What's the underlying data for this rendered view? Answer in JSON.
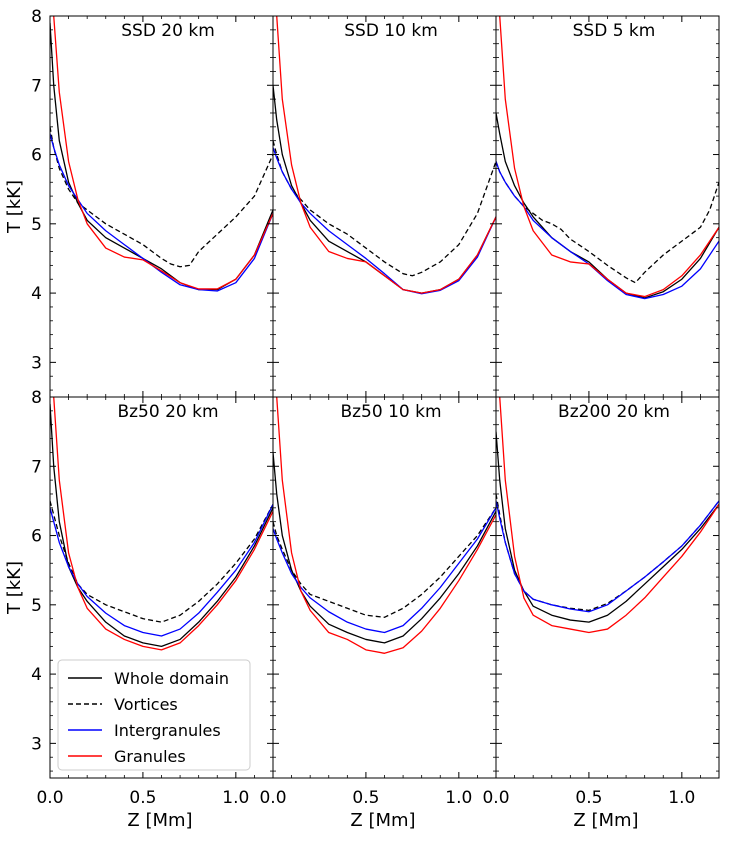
{
  "chart_data": {
    "type": "line",
    "layout": "2x3 grid, shared axes",
    "xlabel": "Z [Mm]",
    "ylabel": "T [kK]",
    "xlim": [
      0.0,
      1.2
    ],
    "ylim": [
      2.5,
      8.0
    ],
    "xticks": [
      0.0,
      0.5,
      1.0
    ],
    "xtick_labels": [
      "0.0",
      "0.5",
      "1.0"
    ],
    "yticks": [
      3,
      4,
      5,
      6,
      7,
      8
    ],
    "ytick_labels": [
      "3",
      "4",
      "5",
      "6",
      "7",
      "8"
    ],
    "grid": false,
    "legend": {
      "placement": "lower-left of bottom-left panel",
      "entries": [
        {
          "label": "Whole domain",
          "color": "#000000",
          "style": "solid"
        },
        {
          "label": "Vortices",
          "color": "#000000",
          "style": "dashed"
        },
        {
          "label": "Intergranules",
          "color": "#0000ff",
          "style": "solid"
        },
        {
          "label": "Granules",
          "color": "#ff0000",
          "style": "solid"
        }
      ]
    },
    "series_colors": {
      "whole": "#000000",
      "vortices": "#000000",
      "intergranules": "#0000ff",
      "granules": "#ff0000"
    },
    "panels": [
      {
        "title": "SSD 20 km",
        "whole": {
          "x": [
            0,
            0.02,
            0.05,
            0.1,
            0.15,
            0.2,
            0.3,
            0.4,
            0.5,
            0.6,
            0.7,
            0.8,
            0.9,
            1.0,
            1.1,
            1.2
          ],
          "y": [
            7.9,
            7.0,
            6.2,
            5.6,
            5.3,
            5.05,
            4.8,
            4.65,
            4.5,
            4.35,
            4.15,
            4.05,
            4.05,
            4.2,
            4.55,
            5.2
          ]
        },
        "vortices": {
          "x": [
            0,
            0.02,
            0.05,
            0.1,
            0.15,
            0.2,
            0.3,
            0.4,
            0.5,
            0.6,
            0.65,
            0.7,
            0.75,
            0.8,
            0.9,
            1.0,
            1.1,
            1.2
          ],
          "y": [
            6.4,
            6.1,
            5.8,
            5.5,
            5.3,
            5.2,
            5.0,
            4.85,
            4.7,
            4.5,
            4.42,
            4.38,
            4.4,
            4.6,
            4.85,
            5.1,
            5.4,
            6.0
          ]
        },
        "intergranules": {
          "x": [
            0,
            0.02,
            0.05,
            0.1,
            0.15,
            0.2,
            0.3,
            0.4,
            0.5,
            0.6,
            0.7,
            0.8,
            0.9,
            1.0,
            1.1,
            1.2
          ],
          "y": [
            6.3,
            6.1,
            5.85,
            5.55,
            5.35,
            5.15,
            4.9,
            4.7,
            4.5,
            4.3,
            4.12,
            4.05,
            4.03,
            4.15,
            4.5,
            5.15
          ]
        },
        "granules": {
          "x": [
            0,
            0.02,
            0.05,
            0.1,
            0.15,
            0.2,
            0.3,
            0.4,
            0.5,
            0.6,
            0.7,
            0.8,
            0.9,
            1.0,
            1.1,
            1.2
          ],
          "y": [
            9.5,
            8.0,
            6.9,
            5.9,
            5.35,
            5.0,
            4.65,
            4.52,
            4.48,
            4.32,
            4.15,
            4.06,
            4.06,
            4.2,
            4.55,
            5.15
          ]
        }
      },
      {
        "title": "SSD 10 km",
        "whole": {
          "x": [
            0,
            0.02,
            0.05,
            0.1,
            0.15,
            0.2,
            0.3,
            0.4,
            0.5,
            0.6,
            0.7,
            0.8,
            0.9,
            1.0,
            1.1,
            1.2
          ],
          "y": [
            7.0,
            6.5,
            6.0,
            5.55,
            5.3,
            5.05,
            4.75,
            4.6,
            4.45,
            4.25,
            4.05,
            4.0,
            4.05,
            4.2,
            4.55,
            5.1
          ]
        },
        "vortices": {
          "x": [
            0,
            0.02,
            0.05,
            0.1,
            0.15,
            0.2,
            0.3,
            0.4,
            0.5,
            0.6,
            0.7,
            0.75,
            0.8,
            0.9,
            1.0,
            1.1,
            1.2
          ],
          "y": [
            6.2,
            6.0,
            5.75,
            5.5,
            5.35,
            5.2,
            5.0,
            4.85,
            4.65,
            4.45,
            4.28,
            4.25,
            4.3,
            4.45,
            4.7,
            5.15,
            5.9
          ]
        },
        "intergranules": {
          "x": [
            0,
            0.02,
            0.05,
            0.1,
            0.15,
            0.2,
            0.3,
            0.4,
            0.5,
            0.6,
            0.7,
            0.8,
            0.9,
            1.0,
            1.1,
            1.2
          ],
          "y": [
            6.1,
            5.95,
            5.75,
            5.5,
            5.3,
            5.15,
            4.9,
            4.7,
            4.5,
            4.28,
            4.05,
            3.99,
            4.04,
            4.18,
            4.52,
            5.1
          ]
        },
        "granules": {
          "x": [
            0,
            0.02,
            0.05,
            0.1,
            0.15,
            0.2,
            0.3,
            0.4,
            0.5,
            0.6,
            0.7,
            0.8,
            0.9,
            1.0,
            1.1,
            1.2
          ],
          "y": [
            9.5,
            8.0,
            6.8,
            5.85,
            5.3,
            4.95,
            4.6,
            4.5,
            4.45,
            4.25,
            4.05,
            4.0,
            4.05,
            4.2,
            4.55,
            5.1
          ]
        }
      },
      {
        "title": "SSD 5 km",
        "whole": {
          "x": [
            0,
            0.02,
            0.05,
            0.1,
            0.15,
            0.2,
            0.3,
            0.4,
            0.5,
            0.6,
            0.7,
            0.8,
            0.9,
            1.0,
            1.1,
            1.2
          ],
          "y": [
            6.6,
            6.3,
            5.9,
            5.55,
            5.3,
            5.1,
            4.8,
            4.6,
            4.45,
            4.2,
            4.0,
            3.93,
            4.02,
            4.2,
            4.5,
            4.95
          ]
        },
        "vortices": {
          "x": [
            0,
            0.02,
            0.05,
            0.1,
            0.15,
            0.2,
            0.25,
            0.3,
            0.35,
            0.4,
            0.5,
            0.6,
            0.7,
            0.75,
            0.8,
            0.9,
            1.0,
            1.05,
            1.1,
            1.15,
            1.2
          ],
          "y": [
            5.9,
            5.75,
            5.6,
            5.4,
            5.25,
            5.15,
            5.05,
            5.0,
            4.92,
            4.78,
            4.6,
            4.4,
            4.22,
            4.15,
            4.3,
            4.55,
            4.75,
            4.85,
            4.95,
            5.2,
            5.6
          ]
        },
        "intergranules": {
          "x": [
            0,
            0.02,
            0.05,
            0.1,
            0.15,
            0.2,
            0.3,
            0.4,
            0.5,
            0.6,
            0.7,
            0.8,
            0.9,
            1.0,
            1.1,
            1.2
          ],
          "y": [
            5.9,
            5.75,
            5.6,
            5.4,
            5.25,
            5.05,
            4.8,
            4.6,
            4.42,
            4.18,
            3.98,
            3.92,
            3.98,
            4.1,
            4.35,
            4.75
          ]
        },
        "granules": {
          "x": [
            0,
            0.02,
            0.05,
            0.1,
            0.15,
            0.2,
            0.3,
            0.4,
            0.5,
            0.6,
            0.7,
            0.8,
            0.9,
            1.0,
            1.1,
            1.2
          ],
          "y": [
            9.5,
            8.0,
            6.8,
            5.8,
            5.25,
            4.9,
            4.55,
            4.45,
            4.42,
            4.2,
            4.0,
            3.95,
            4.05,
            4.25,
            4.55,
            4.95
          ]
        }
      },
      {
        "title": "Bz50 20 km",
        "whole": {
          "x": [
            0,
            0.02,
            0.05,
            0.1,
            0.15,
            0.2,
            0.3,
            0.4,
            0.5,
            0.6,
            0.7,
            0.8,
            0.9,
            1.0,
            1.1,
            1.2
          ],
          "y": [
            7.9,
            7.0,
            6.2,
            5.55,
            5.25,
            5.05,
            4.75,
            4.55,
            4.45,
            4.4,
            4.5,
            4.75,
            5.05,
            5.4,
            5.85,
            6.4
          ]
        },
        "vortices": {
          "x": [
            0,
            0.02,
            0.05,
            0.1,
            0.15,
            0.2,
            0.3,
            0.4,
            0.5,
            0.6,
            0.7,
            0.8,
            0.9,
            1.0,
            1.1,
            1.2
          ],
          "y": [
            6.5,
            6.3,
            6.0,
            5.6,
            5.3,
            5.15,
            5.0,
            4.9,
            4.8,
            4.75,
            4.85,
            5.05,
            5.3,
            5.6,
            5.95,
            6.45
          ]
        },
        "intergranules": {
          "x": [
            0,
            0.02,
            0.05,
            0.1,
            0.15,
            0.2,
            0.3,
            0.4,
            0.5,
            0.6,
            0.7,
            0.8,
            0.9,
            1.0,
            1.1,
            1.2
          ],
          "y": [
            6.4,
            6.2,
            5.9,
            5.55,
            5.3,
            5.12,
            4.88,
            4.7,
            4.6,
            4.55,
            4.65,
            4.88,
            5.18,
            5.5,
            5.9,
            6.45
          ]
        },
        "granules": {
          "x": [
            0,
            0.02,
            0.05,
            0.1,
            0.15,
            0.2,
            0.3,
            0.4,
            0.5,
            0.6,
            0.7,
            0.8,
            0.9,
            1.0,
            1.1,
            1.2
          ],
          "y": [
            9.5,
            8.0,
            6.8,
            5.75,
            5.25,
            4.95,
            4.65,
            4.5,
            4.4,
            4.35,
            4.45,
            4.7,
            5.0,
            5.35,
            5.8,
            6.35
          ]
        }
      },
      {
        "title": "Bz50 10 km",
        "whole": {
          "x": [
            0,
            0.02,
            0.05,
            0.1,
            0.15,
            0.2,
            0.3,
            0.4,
            0.5,
            0.6,
            0.7,
            0.8,
            0.9,
            1.0,
            1.1,
            1.2
          ],
          "y": [
            7.2,
            6.6,
            6.0,
            5.5,
            5.2,
            4.98,
            4.72,
            4.6,
            4.5,
            4.45,
            4.55,
            4.8,
            5.1,
            5.45,
            5.85,
            6.35
          ]
        },
        "vortices": {
          "x": [
            0,
            0.02,
            0.05,
            0.1,
            0.15,
            0.2,
            0.3,
            0.4,
            0.5,
            0.6,
            0.7,
            0.8,
            0.9,
            1.0,
            1.1,
            1.2
          ],
          "y": [
            6.2,
            6.0,
            5.8,
            5.5,
            5.3,
            5.15,
            5.05,
            4.95,
            4.85,
            4.82,
            4.95,
            5.15,
            5.4,
            5.7,
            6.0,
            6.4
          ]
        },
        "intergranules": {
          "x": [
            0,
            0.02,
            0.05,
            0.1,
            0.15,
            0.2,
            0.3,
            0.4,
            0.5,
            0.6,
            0.7,
            0.8,
            0.9,
            1.0,
            1.1,
            1.2
          ],
          "y": [
            6.1,
            5.95,
            5.75,
            5.45,
            5.25,
            5.1,
            4.9,
            4.75,
            4.65,
            4.6,
            4.7,
            4.95,
            5.25,
            5.6,
            5.95,
            6.4
          ]
        },
        "granules": {
          "x": [
            0,
            0.02,
            0.05,
            0.1,
            0.15,
            0.2,
            0.3,
            0.4,
            0.5,
            0.6,
            0.7,
            0.8,
            0.9,
            1.0,
            1.1,
            1.2
          ],
          "y": [
            9.5,
            8.0,
            6.8,
            5.75,
            5.2,
            4.92,
            4.6,
            4.5,
            4.35,
            4.3,
            4.38,
            4.62,
            4.95,
            5.35,
            5.8,
            6.3
          ]
        }
      },
      {
        "title": "Bz200 20 km",
        "whole": {
          "x": [
            0,
            0.02,
            0.05,
            0.1,
            0.15,
            0.2,
            0.3,
            0.4,
            0.5,
            0.6,
            0.7,
            0.8,
            0.9,
            1.0,
            1.1,
            1.2
          ],
          "y": [
            7.5,
            6.8,
            6.1,
            5.5,
            5.2,
            4.98,
            4.85,
            4.78,
            4.75,
            4.85,
            5.05,
            5.3,
            5.55,
            5.8,
            6.1,
            6.45
          ]
        },
        "vortices": {
          "x": [
            0,
            0.02,
            0.05,
            0.1,
            0.15,
            0.2,
            0.3,
            0.4,
            0.5,
            0.6,
            0.7,
            0.8,
            0.9,
            1.0,
            1.1,
            1.2
          ],
          "y": [
            6.6,
            6.3,
            5.9,
            5.45,
            5.2,
            5.08,
            5.0,
            4.95,
            4.92,
            5.02,
            5.2,
            5.4,
            5.62,
            5.85,
            6.15,
            6.5
          ]
        },
        "intergranules": {
          "x": [
            0,
            0.02,
            0.05,
            0.1,
            0.15,
            0.2,
            0.3,
            0.4,
            0.5,
            0.6,
            0.7,
            0.8,
            0.9,
            1.0,
            1.1,
            1.2
          ],
          "y": [
            6.5,
            6.25,
            5.9,
            5.45,
            5.2,
            5.08,
            5.0,
            4.94,
            4.9,
            5.0,
            5.2,
            5.4,
            5.62,
            5.85,
            6.15,
            6.5
          ]
        },
        "granules": {
          "x": [
            0,
            0.02,
            0.05,
            0.1,
            0.15,
            0.2,
            0.3,
            0.4,
            0.5,
            0.6,
            0.7,
            0.8,
            0.9,
            1.0,
            1.1,
            1.2
          ],
          "y": [
            9.5,
            8.0,
            6.8,
            5.7,
            5.1,
            4.85,
            4.7,
            4.65,
            4.6,
            4.65,
            4.85,
            5.1,
            5.4,
            5.7,
            6.05,
            6.45
          ]
        }
      }
    ]
  }
}
